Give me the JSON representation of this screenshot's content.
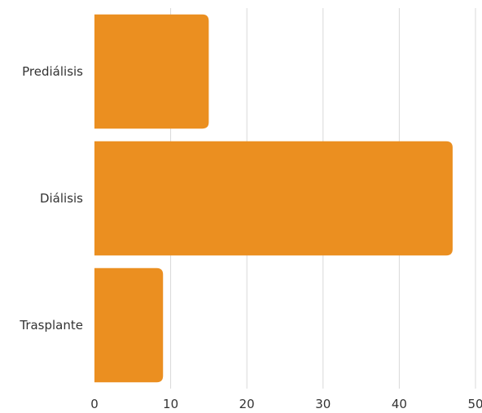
{
  "chart_data": {
    "type": "bar",
    "orientation": "horizontal",
    "categories": [
      "Prediálisis",
      "Diálisis",
      "Trasplante"
    ],
    "values": [
      15,
      47,
      9
    ],
    "xlim": [
      0,
      50
    ],
    "x_ticks": [
      0,
      10,
      20,
      30,
      40,
      50
    ],
    "x_tick_labels": [
      "0",
      "10",
      "20",
      "30",
      "40",
      "50"
    ],
    "grid": "vertical",
    "title": "",
    "xlabel": "",
    "ylabel": "",
    "colors": {
      "bar": "#EB8F20",
      "grid": "#d9d9d9",
      "text": "#333333"
    }
  }
}
